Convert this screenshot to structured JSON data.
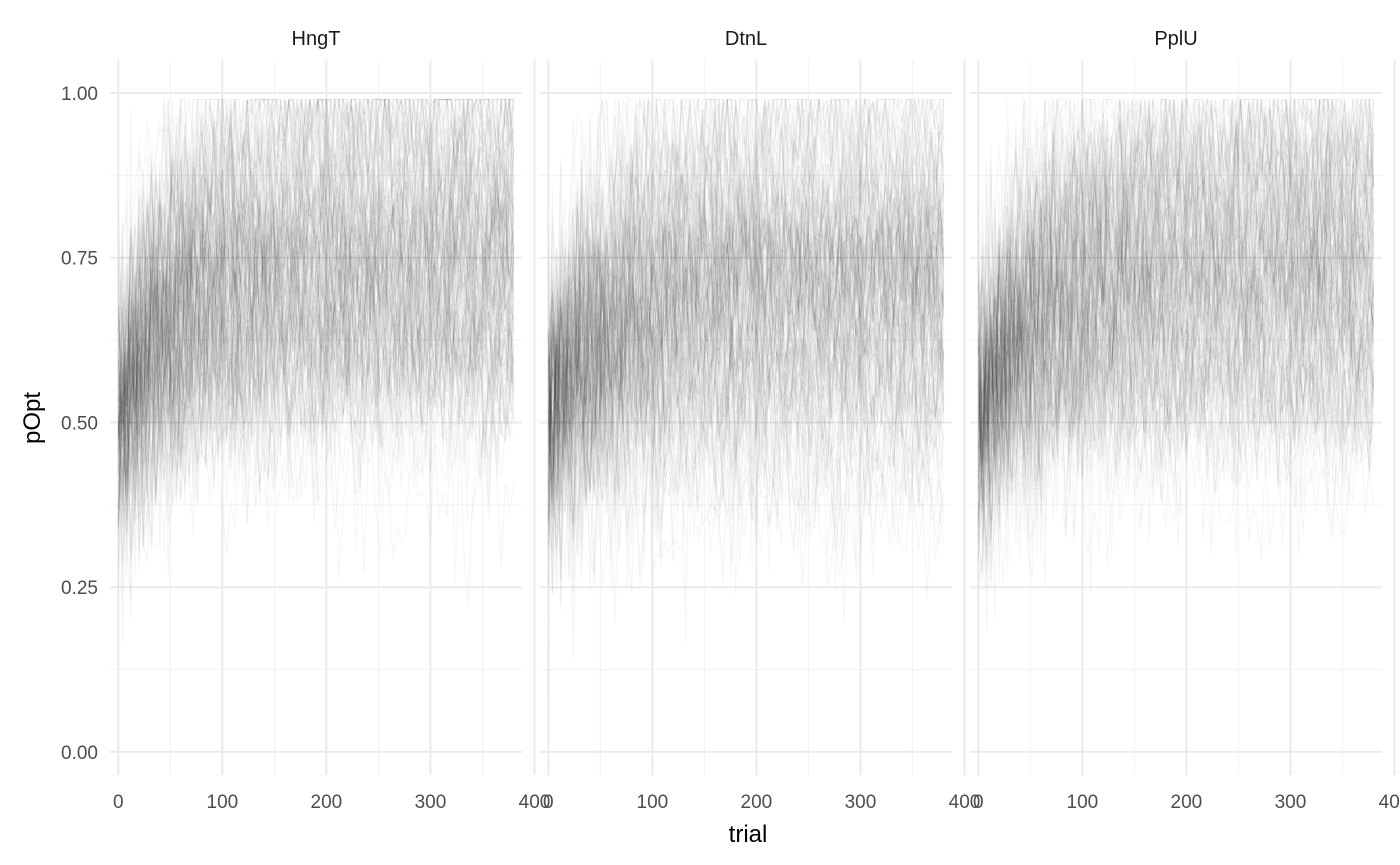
{
  "chart_data": {
    "type": "line",
    "description_note": "",
    "xlabel": "trial",
    "ylabel": "pOpt",
    "xlim": [
      -8,
      388
    ],
    "ylim": [
      -0.035,
      1.05
    ],
    "x_ticks": [
      0,
      100,
      200,
      300,
      400
    ],
    "x_tick_labels": [
      "0",
      "100",
      "200",
      "300",
      "400"
    ],
    "y_ticks": [
      0,
      0.25,
      0.5,
      0.75,
      1
    ],
    "y_tick_labels": [
      "0.00",
      "0.25",
      "0.50",
      "0.75",
      "1.00"
    ],
    "grid": true,
    "trials": 380,
    "facets": [
      {
        "label": "HngT",
        "start": 0.5,
        "mean_end": 0.74,
        "spread_end": 0.14,
        "min_low": 0.1
      },
      {
        "label": "DtnL",
        "start": 0.5,
        "mean_end": 0.72,
        "spread_end": 0.15,
        "min_low": 0.05
      },
      {
        "label": "PplU",
        "start": 0.5,
        "mean_end": 0.74,
        "spread_end": 0.14,
        "min_low": 0.1
      }
    ],
    "line_color": "#000000",
    "line_alpha": 0.035,
    "background": "#ffffff",
    "grid_major_color": "#ebebeb",
    "grid_minor_color": "#f3f3f3"
  }
}
